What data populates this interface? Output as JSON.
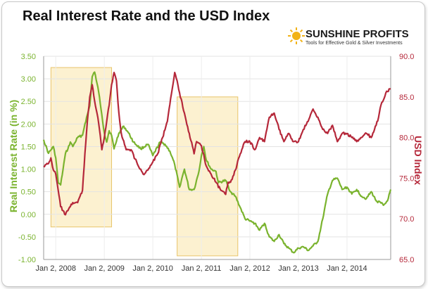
{
  "chart_data": {
    "type": "line",
    "title": "Real Interest Rate and the USD Index",
    "logo": {
      "name": "SUNSHINE PROFITS",
      "tagline": "Tools for Effective Gold & Silver Investments"
    },
    "colors": {
      "real_rate": "#7ab32e",
      "usd": "#b5283a",
      "highlight_fill": "#fbeec8",
      "highlight_stroke": "#e8c46a"
    },
    "xlabel": "",
    "x_ticks": [
      "Jan 2, 2008",
      "Jan 2, 2009",
      "Jan 2, 2010",
      "Jan 2, 2011",
      "Jan 2, 2012",
      "Jan 2, 2013",
      "Jan 2, 2014"
    ],
    "x_range": [
      2007.75,
      2014.9
    ],
    "y_left": {
      "label": "Real Interest Rate (in %)",
      "range": [
        -1.0,
        3.5
      ],
      "ticks": [
        "3.50",
        "3.00",
        "2.50",
        "2.00",
        "1.50",
        "1.00",
        "0.50",
        "0.00",
        "-0.50",
        "-1.00"
      ]
    },
    "y_right": {
      "label": "USD Index",
      "range": [
        65.0,
        90.0
      ],
      "ticks": [
        "90.0",
        "85.0",
        "80.0",
        "75.0",
        "70.0",
        "65.0"
      ]
    },
    "grid": true,
    "highlights": [
      {
        "x_start": 2007.9,
        "x_end": 2009.15,
        "y_top_left_units": 3.25,
        "y_bottom_left_units": -0.28
      },
      {
        "x_start": 2010.5,
        "x_end": 2011.75,
        "y_top_left_units": 2.6,
        "y_bottom_left_units": -0.92
      }
    ],
    "series": [
      {
        "name": "Real Interest Rate",
        "axis": "left",
        "x": [
          2007.75,
          2007.85,
          2007.95,
          2008.0,
          2008.05,
          2008.1,
          2008.15,
          2008.2,
          2008.25,
          2008.3,
          2008.35,
          2008.45,
          2008.55,
          2008.6,
          2008.7,
          2008.75,
          2008.8,
          2008.85,
          2008.9,
          2008.95,
          2009.0,
          2009.05,
          2009.1,
          2009.15,
          2009.2,
          2009.3,
          2009.4,
          2009.5,
          2009.6,
          2009.75,
          2009.9,
          2010.0,
          2010.15,
          2010.25,
          2010.35,
          2010.45,
          2010.55,
          2010.65,
          2010.75,
          2010.85,
          2010.95,
          2011.0,
          2011.05,
          2011.1,
          2011.2,
          2011.3,
          2011.35,
          2011.5,
          2011.6,
          2011.7,
          2011.8,
          2011.9,
          2012.0,
          2012.1,
          2012.2,
          2012.3,
          2012.4,
          2012.5,
          2012.6,
          2012.7,
          2012.8,
          2012.9,
          2013.0,
          2013.1,
          2013.2,
          2013.3,
          2013.4,
          2013.5,
          2013.6,
          2013.7,
          2013.8,
          2013.9,
          2014.0,
          2014.1,
          2014.2,
          2014.3,
          2014.4,
          2014.5,
          2014.6,
          2014.7,
          2014.75,
          2014.8,
          2014.85,
          2014.9
        ],
        "values": [
          1.65,
          1.35,
          1.5,
          1.25,
          0.7,
          0.65,
          1.0,
          1.35,
          1.45,
          1.6,
          1.5,
          1.7,
          1.75,
          2.0,
          2.4,
          3.05,
          3.15,
          2.9,
          2.6,
          2.2,
          1.8,
          1.6,
          1.85,
          1.75,
          1.45,
          1.8,
          1.95,
          1.8,
          1.6,
          1.45,
          1.55,
          1.3,
          1.6,
          1.55,
          1.4,
          1.1,
          0.6,
          1.0,
          0.55,
          0.55,
          0.95,
          1.3,
          1.5,
          1.2,
          1.0,
          0.95,
          0.7,
          0.75,
          0.5,
          0.4,
          0.15,
          -0.1,
          -0.15,
          -0.2,
          -0.35,
          -0.2,
          -0.5,
          -0.6,
          -0.45,
          -0.65,
          -0.75,
          -0.85,
          -0.75,
          -0.72,
          -0.8,
          -0.7,
          -0.6,
          -0.1,
          0.45,
          0.75,
          0.8,
          0.55,
          0.6,
          0.45,
          0.55,
          0.4,
          0.35,
          0.5,
          0.3,
          0.25,
          0.2,
          0.25,
          0.35,
          0.55
        ]
      },
      {
        "name": "USD Index",
        "axis": "right",
        "x": [
          2007.75,
          2007.85,
          2007.9,
          2007.95,
          2008.0,
          2008.05,
          2008.1,
          2008.15,
          2008.2,
          2008.25,
          2008.3,
          2008.35,
          2008.45,
          2008.55,
          2008.6,
          2008.65,
          2008.7,
          2008.75,
          2008.8,
          2008.85,
          2008.9,
          2008.95,
          2009.0,
          2009.05,
          2009.1,
          2009.15,
          2009.2,
          2009.25,
          2009.3,
          2009.35,
          2009.45,
          2009.55,
          2009.7,
          2009.8,
          2009.9,
          2010.0,
          2010.1,
          2010.2,
          2010.3,
          2010.4,
          2010.45,
          2010.5,
          2010.55,
          2010.65,
          2010.75,
          2010.85,
          2010.9,
          2011.0,
          2011.1,
          2011.2,
          2011.3,
          2011.4,
          2011.5,
          2011.55,
          2011.6,
          2011.7,
          2011.8,
          2011.9,
          2012.0,
          2012.1,
          2012.2,
          2012.3,
          2012.4,
          2012.5,
          2012.6,
          2012.7,
          2012.8,
          2012.9,
          2013.0,
          2013.1,
          2013.2,
          2013.3,
          2013.4,
          2013.5,
          2013.6,
          2013.7,
          2013.8,
          2013.9,
          2014.0,
          2014.1,
          2014.2,
          2014.3,
          2014.4,
          2014.5,
          2014.6,
          2014.65,
          2014.7,
          2014.8,
          2014.9
        ],
        "values": [
          76.5,
          76.8,
          77.5,
          76.0,
          75.5,
          73.5,
          71.5,
          71.0,
          70.5,
          71.0,
          71.5,
          72.0,
          72.0,
          73.5,
          78.0,
          82.0,
          85.0,
          86.5,
          84.5,
          83.0,
          81.0,
          78.5,
          80.0,
          82.0,
          84.0,
          86.5,
          88.0,
          87.0,
          83.0,
          80.5,
          78.5,
          78.5,
          76.5,
          75.5,
          76.0,
          77.0,
          78.0,
          80.0,
          82.0,
          86.0,
          88.0,
          87.0,
          85.5,
          83.0,
          80.5,
          78.0,
          79.5,
          79.0,
          76.5,
          75.5,
          74.5,
          73.5,
          73.0,
          74.5,
          74.5,
          76.0,
          78.0,
          79.5,
          79.5,
          78.5,
          80.0,
          79.5,
          82.5,
          83.0,
          81.0,
          79.5,
          80.5,
          79.5,
          79.5,
          81.0,
          82.0,
          83.5,
          82.5,
          81.0,
          80.5,
          81.5,
          79.5,
          80.5,
          80.5,
          80.0,
          79.5,
          80.0,
          80.5,
          80.0,
          81.5,
          82.5,
          84.0,
          85.5,
          86.0
        ]
      }
    ]
  }
}
